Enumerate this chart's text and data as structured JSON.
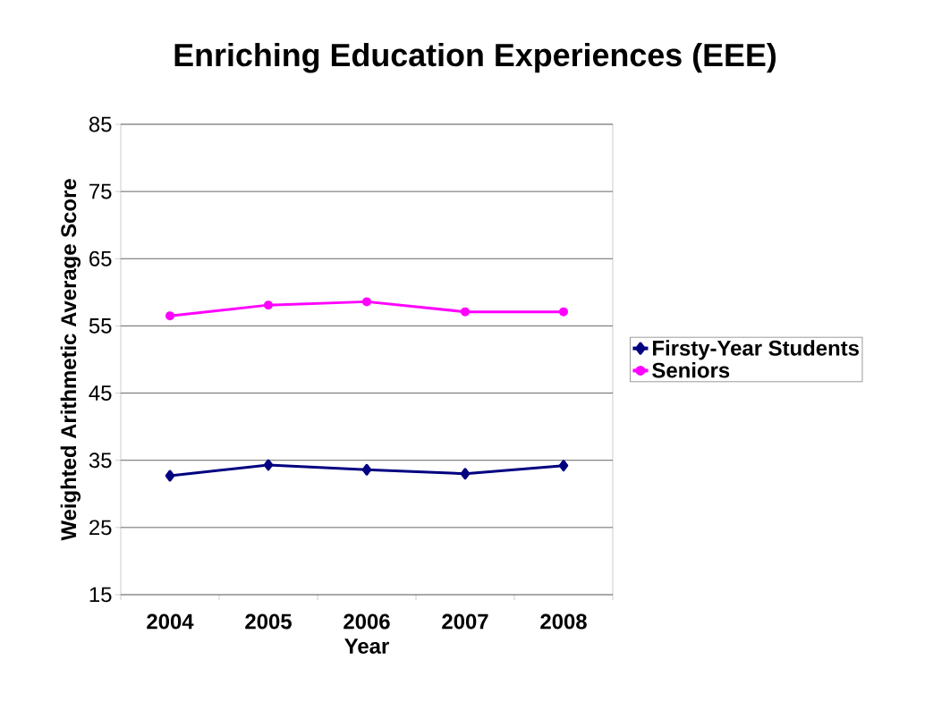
{
  "chart_data": {
    "type": "line",
    "title": "Enriching Education Experiences (EEE)",
    "xlabel": "Year",
    "ylabel": "Weighted Arithmetic Average Score",
    "categories": [
      "2004",
      "2005",
      "2006",
      "2007",
      "2008"
    ],
    "series": [
      {
        "name": "Firsty-Year Students",
        "color": "#000080",
        "marker": "diamond",
        "values": [
          32.7,
          34.3,
          33.6,
          33.0,
          34.2
        ]
      },
      {
        "name": "Seniors",
        "color": "#ff00ff",
        "marker": "circle",
        "values": [
          56.5,
          58.1,
          58.6,
          57.1,
          57.1
        ]
      }
    ],
    "ylim": [
      15,
      85
    ],
    "yticks": [
      15,
      25,
      35,
      45,
      55,
      65,
      75,
      85
    ],
    "grid": "y",
    "legend": "right",
    "line_style": "solid"
  }
}
